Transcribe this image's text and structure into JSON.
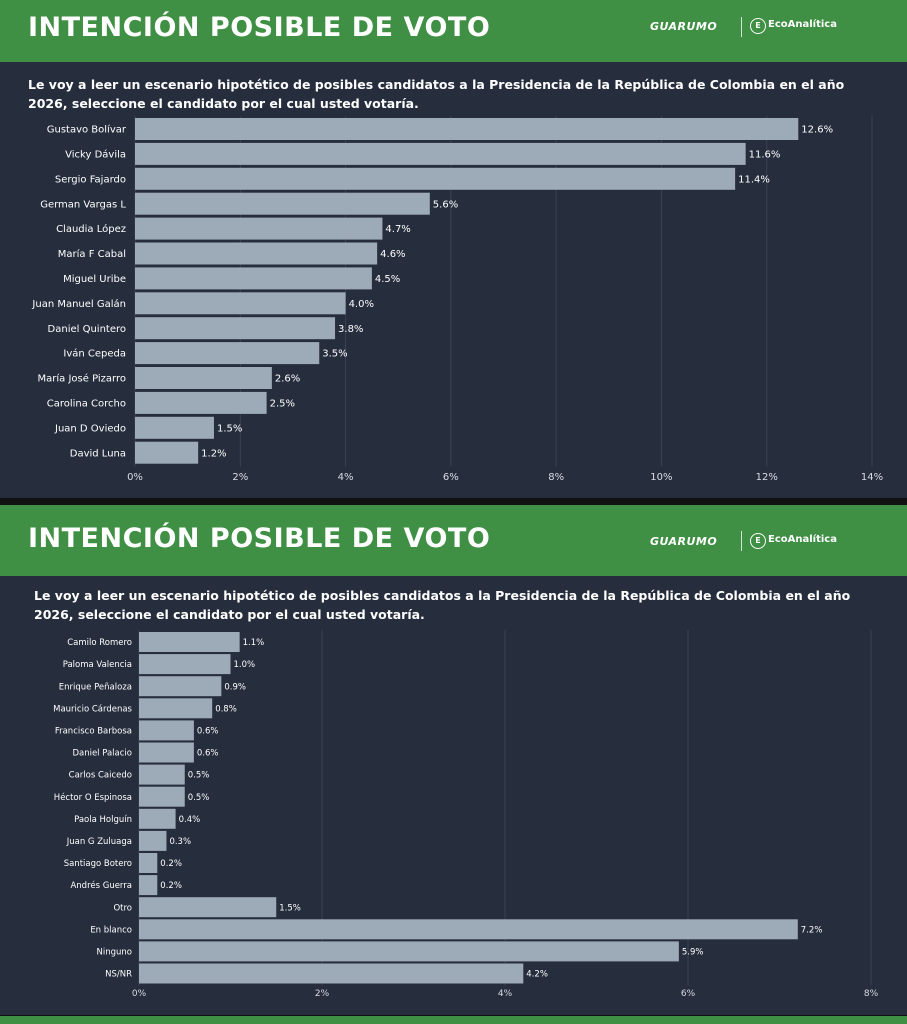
{
  "panels": [
    {
      "header_title": "INTENCIÓN POSIBLE DE VOTO",
      "logo_guarumo": "GUARUMO",
      "logo_eco_icon": "E",
      "logo_eco": "EcoAnalítica",
      "question": "Le voy a leer un escenario hipotético de posibles candidatos a la Presidencia de la República de Colombia en el año 2026, seleccione el candidato por el cual usted votaría."
    },
    {
      "header_title": "INTENCIÓN POSIBLE DE VOTO",
      "logo_guarumo": "GUARUMO",
      "logo_eco_icon": "E",
      "logo_eco": "EcoAnalítica",
      "question": "Le voy a leer un escenario hipotético de posibles candidatos a la Presidencia de la República de Colombia en el año 2026, seleccione el candidato por el cual usted votaría."
    }
  ],
  "colors": {
    "header_green": "#3f8f44",
    "panel_bg": "#262d3d",
    "bar": "#9daab8",
    "text": "#ffffff"
  },
  "chart_data": [
    {
      "type": "bar",
      "orientation": "horizontal",
      "categories": [
        "Gustavo Bolívar",
        "Vicky Dávila",
        "Sergio Fajardo",
        "German Vargas L",
        "Claudia López",
        "María F Cabal",
        "Miguel Uribe",
        "Juan Manuel Galán",
        "Daniel Quintero",
        "Iván Cepeda",
        "María José Pizarro",
        "Carolina Corcho",
        "Juan D Oviedo",
        "David Luna"
      ],
      "values": [
        12.6,
        11.6,
        11.4,
        5.6,
        4.7,
        4.6,
        4.5,
        4.0,
        3.8,
        3.5,
        2.6,
        2.5,
        1.5,
        1.2
      ],
      "value_labels": [
        "12.6%",
        "11.6%",
        "11.4%",
        "5.6%",
        "4.7%",
        "4.6%",
        "4.5%",
        "4.0%",
        "3.8%",
        "3.5%",
        "2.6%",
        "2.5%",
        "1.5%",
        "1.2%"
      ],
      "xlim": [
        0,
        14
      ],
      "ticks": [
        0,
        2,
        4,
        6,
        8,
        10,
        12,
        14
      ],
      "tick_labels": [
        "0%",
        "2%",
        "4%",
        "6%",
        "8%",
        "10%",
        "12%",
        "14%"
      ],
      "grid": true
    },
    {
      "type": "bar",
      "orientation": "horizontal",
      "categories": [
        "Camilo Romero",
        "Paloma Valencia",
        "Enrique Peñaloza",
        "Mauricio Cárdenas",
        "Francisco Barbosa",
        "Daniel Palacio",
        "Carlos Caicedo",
        "Héctor O Espinosa",
        "Paola Holguín",
        "Juan G Zuluaga",
        "Santiago Botero",
        "Andrés Guerra",
        "Otro",
        "En blanco",
        "Ninguno",
        "NS/NR"
      ],
      "values": [
        1.1,
        1.0,
        0.9,
        0.8,
        0.6,
        0.6,
        0.5,
        0.5,
        0.4,
        0.3,
        0.2,
        0.2,
        1.5,
        7.2,
        5.9,
        4.2
      ],
      "value_labels": [
        "1.1%",
        "1.0%",
        "0.9%",
        "0.8%",
        "0.6%",
        "0.6%",
        "0.5%",
        "0.5%",
        "0.4%",
        "0.3%",
        "0.2%",
        "0.2%",
        "1.5%",
        "7.2%",
        "5.9%",
        "4.2%"
      ],
      "xlim": [
        0,
        8
      ],
      "ticks": [
        0,
        2,
        4,
        6,
        8
      ],
      "tick_labels": [
        "0%",
        "2%",
        "4%",
        "6%",
        "8%"
      ],
      "grid": true
    }
  ]
}
